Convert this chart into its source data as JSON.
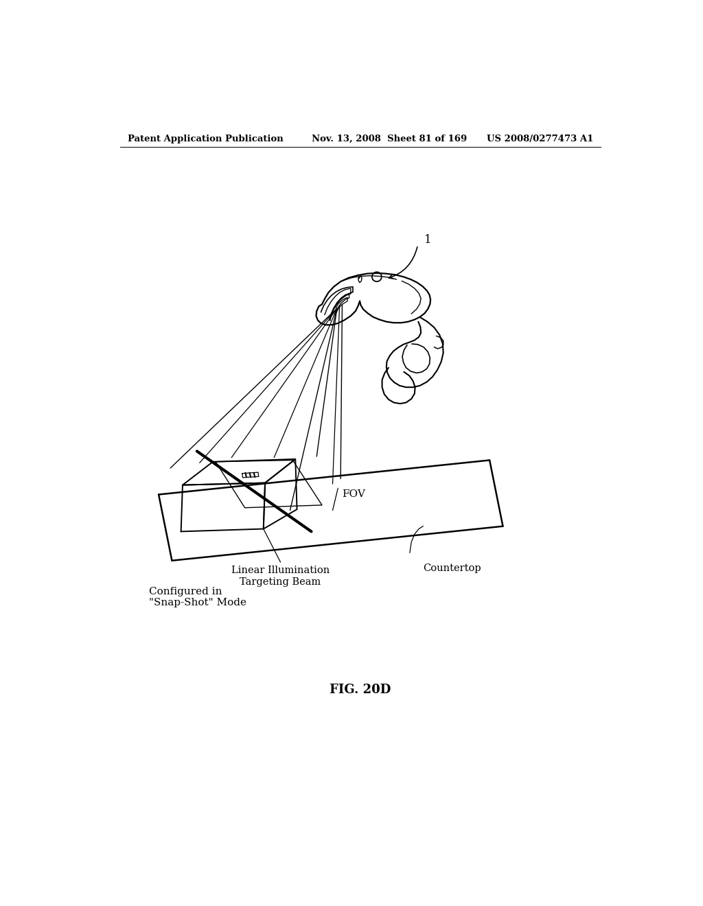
{
  "header_left": "Patent Application Publication",
  "header_mid": "Nov. 13, 2008  Sheet 81 of 169",
  "header_right": "US 2008/0277473 A1",
  "figure_label": "FIG. 20D",
  "label_1": "1",
  "label_fov": "FOV",
  "label_countertop": "Countertop",
  "label_linear": "Linear Illumination\nTargeting Beam",
  "label_configured": "Configured in\n\"Snap-Shot\" Mode",
  "bg_color": "#ffffff",
  "line_color": "#000000"
}
